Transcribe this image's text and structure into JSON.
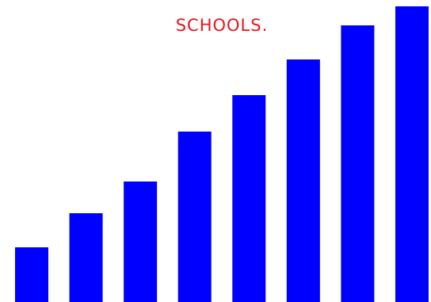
{
  "chart_data": {
    "type": "bar",
    "title": "SCHOOLS.",
    "categories": [
      null,
      null,
      null,
      null,
      null,
      null,
      null,
      null
    ],
    "values": [
      69,
      112,
      152,
      215,
      261,
      306,
      349,
      373
    ],
    "color": "#0000ff",
    "ylim": [
      0,
      381
    ]
  }
}
